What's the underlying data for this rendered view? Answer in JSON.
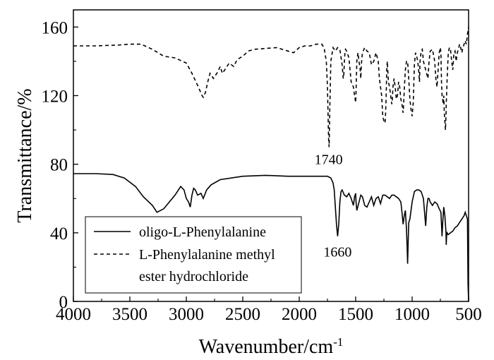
{
  "chart_data": {
    "type": "line",
    "xlabel": "Wavenumber/cm",
    "xlabel_sup": "-1",
    "ylabel": "Transmittance/%",
    "xlim": [
      4000,
      500
    ],
    "ylim": [
      0,
      170
    ],
    "x_ticks": [
      "4000",
      "3500",
      "3000",
      "2500",
      "2000",
      "1500",
      "1000",
      "500"
    ],
    "y_ticks": [
      "0",
      "40",
      "80",
      "120",
      "160"
    ],
    "grid": false,
    "legend_position": "bottom-left",
    "series": [
      {
        "name": "oligo-L-Phenylalanine",
        "style": "solid",
        "color": "#000000",
        "x": [
          4000,
          3800,
          3650,
          3550,
          3450,
          3380,
          3300,
          3260,
          3200,
          3100,
          3060,
          3050,
          3020,
          3000,
          2980,
          2965,
          2950,
          2935,
          2920,
          2900,
          2870,
          2850,
          2820,
          2780,
          2700,
          2500,
          2300,
          2100,
          1950,
          1800,
          1750,
          1720,
          1700,
          1690,
          1680,
          1670,
          1660,
          1650,
          1640,
          1630,
          1620,
          1600,
          1580,
          1560,
          1540,
          1530,
          1520,
          1510,
          1500,
          1497,
          1490,
          1470,
          1455,
          1440,
          1420,
          1400,
          1380,
          1360,
          1340,
          1320,
          1300,
          1280,
          1260,
          1240,
          1220,
          1200,
          1180,
          1160,
          1140,
          1120,
          1100,
          1090,
          1080,
          1070,
          1060,
          1050,
          1045,
          1040,
          1035,
          1030,
          1020,
          1000,
          980,
          960,
          940,
          920,
          900,
          890,
          880,
          870,
          860,
          850,
          840,
          820,
          800,
          780,
          760,
          745,
          740,
          735,
          730,
          720,
          710,
          705,
          700,
          698,
          695,
          690,
          680,
          660,
          640,
          620,
          600,
          580,
          560,
          540,
          530,
          520,
          510,
          505,
          500
        ],
        "y": [
          74.5,
          74.5,
          74,
          72,
          67,
          61,
          56,
          52,
          54,
          62,
          66,
          67,
          65,
          60,
          58,
          55,
          62,
          66,
          65,
          62,
          63,
          60,
          65,
          68,
          71,
          73,
          73.5,
          73,
          73,
          73,
          73,
          72,
          69,
          65,
          55,
          45,
          38,
          45,
          58,
          64,
          65,
          62,
          61,
          63,
          60,
          58,
          56,
          61,
          63,
          58,
          53,
          58,
          62,
          61,
          56,
          55,
          58,
          61,
          56,
          60,
          61,
          57,
          62,
          62,
          61,
          60,
          62,
          62,
          61,
          60,
          58,
          52,
          45,
          50,
          53,
          42,
          33,
          22,
          35,
          46,
          48,
          58,
          64,
          65,
          65,
          64,
          60,
          52,
          44,
          55,
          60,
          60,
          58,
          56,
          58,
          57,
          54,
          52,
          45,
          38,
          45,
          55,
          50,
          45,
          40,
          33,
          38,
          40,
          39,
          40,
          41,
          43,
          44,
          46,
          48,
          50,
          52,
          50,
          48,
          10,
          0
        ]
      },
      {
        "name": "L-Phenylalanine methyl ester hydrochloride",
        "style": "dashed",
        "color": "#000000",
        "x": [
          4000,
          3800,
          3600,
          3500,
          3400,
          3300,
          3200,
          3100,
          3000,
          2950,
          2900,
          2880,
          2860,
          2850,
          2830,
          2810,
          2790,
          2760,
          2720,
          2700,
          2680,
          2650,
          2620,
          2580,
          2550,
          2500,
          2450,
          2400,
          2300,
          2200,
          2100,
          2050,
          2000,
          1950,
          1900,
          1850,
          1800,
          1780,
          1760,
          1750,
          1745,
          1740,
          1735,
          1730,
          1720,
          1700,
          1680,
          1660,
          1640,
          1620,
          1610,
          1605,
          1600,
          1595,
          1590,
          1580,
          1560,
          1540,
          1520,
          1510,
          1500,
          1497,
          1494,
          1490,
          1480,
          1460,
          1455,
          1450,
          1440,
          1420,
          1400,
          1380,
          1360,
          1340,
          1320,
          1300,
          1290,
          1280,
          1270,
          1260,
          1250,
          1240,
          1235,
          1230,
          1225,
          1220,
          1210,
          1200,
          1190,
          1180,
          1175,
          1170,
          1160,
          1150,
          1140,
          1130,
          1120,
          1110,
          1100,
          1090,
          1085,
          1080,
          1075,
          1070,
          1060,
          1050,
          1040,
          1030,
          1020,
          1010,
          1000,
          990,
          980,
          970,
          960,
          950,
          940,
          935,
          930,
          920,
          910,
          900,
          880,
          860,
          850,
          840,
          820,
          800,
          790,
          780,
          770,
          760,
          750,
          745,
          740,
          735,
          730,
          725,
          720,
          715,
          710,
          705,
          700,
          698,
          695,
          690,
          680,
          670,
          660,
          650,
          640,
          630,
          620,
          610,
          600,
          590,
          580,
          570,
          560,
          550,
          540,
          530,
          520,
          515,
          510,
          505,
          500
        ],
        "y": [
          149,
          149,
          149.5,
          150,
          150,
          147,
          143,
          142,
          139,
          133,
          126,
          123,
          120,
          119,
          122,
          128,
          133,
          130,
          134,
          137,
          133,
          136,
          139,
          137,
          141,
          143,
          146,
          147,
          147.5,
          148,
          146,
          145,
          148,
          149,
          149,
          150,
          150,
          148,
          140,
          125,
          110,
          95,
          90,
          110,
          140,
          148,
          146,
          148,
          147,
          138,
          130,
          132,
          140,
          145,
          147,
          146,
          142,
          128,
          125,
          120,
          116,
          122,
          130,
          140,
          145,
          135,
          130,
          138,
          145,
          148,
          146,
          145,
          138,
          140,
          145,
          140,
          130,
          125,
          120,
          108,
          105,
          104,
          110,
          120,
          135,
          140,
          128,
          125,
          120,
          115,
          118,
          125,
          130,
          125,
          118,
          120,
          128,
          125,
          118,
          115,
          112,
          110,
          115,
          123,
          135,
          140,
          140,
          130,
          118,
          112,
          108,
          116,
          138,
          145,
          143,
          140,
          133,
          128,
          140,
          146,
          147,
          140,
          135,
          130,
          140,
          146,
          147,
          140,
          130,
          125,
          135,
          145,
          148,
          145,
          128,
          120,
          118,
          115,
          120,
          110,
          105,
          100,
          108,
          115,
          120,
          130,
          145,
          148,
          147,
          140,
          135,
          145,
          146,
          140,
          145,
          147,
          150,
          148,
          145,
          148,
          150,
          152,
          150,
          153,
          156,
          158,
          160
        ]
      }
    ],
    "annotations": [
      {
        "text": "1740",
        "x": 1740,
        "y": 90
      },
      {
        "text": "1660",
        "x": 1660,
        "y": 36
      }
    ],
    "legend": [
      {
        "label": "oligo-L-Phenylalanine",
        "style": "solid"
      },
      {
        "label": "L-Phenylalanine methyl",
        "style": "dashed"
      },
      {
        "label": "ester hydrochloride",
        "style": "none"
      }
    ]
  }
}
